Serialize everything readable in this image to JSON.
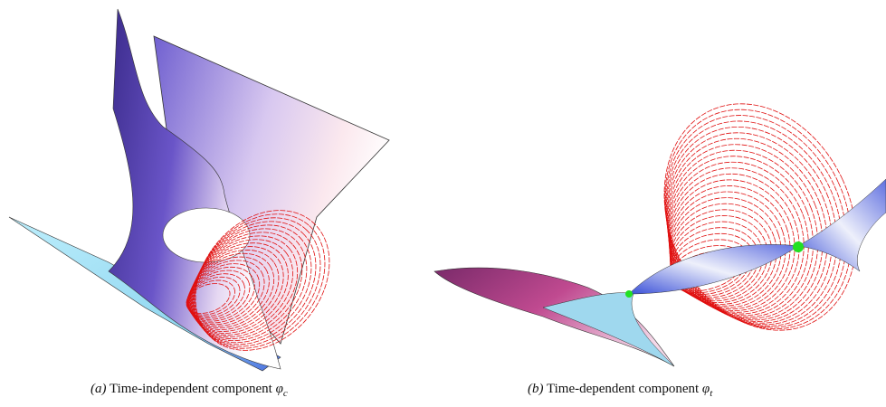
{
  "figures": [
    {
      "label": "(a)",
      "caption": "Time-independent component",
      "symbol": "φ",
      "subscript": "c"
    },
    {
      "label": "(b)",
      "caption": "Time-dependent component",
      "symbol": "φ",
      "subscript": "t"
    }
  ]
}
